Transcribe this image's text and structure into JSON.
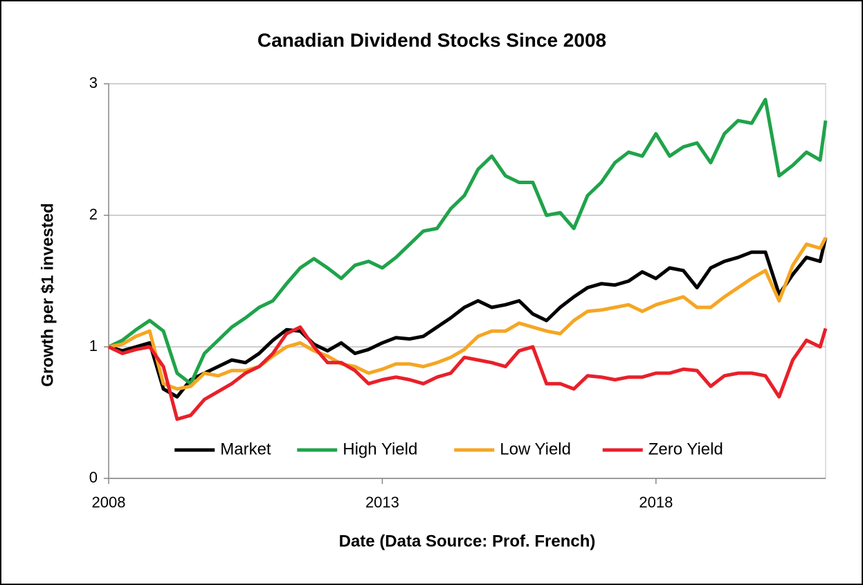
{
  "chart_data": {
    "type": "line",
    "title": "Canadian Dividend Stocks Since 2008",
    "xlabel": "Date (Data Source: Prof. French)",
    "ylabel": "Growth per $1 invested",
    "x": [
      2008,
      2008.25,
      2008.5,
      2008.75,
      2009,
      2009.25,
      2009.5,
      2009.75,
      2010,
      2010.25,
      2010.5,
      2010.75,
      2011,
      2011.25,
      2011.5,
      2011.75,
      2012,
      2012.25,
      2012.5,
      2012.75,
      2013,
      2013.25,
      2013.5,
      2013.75,
      2014,
      2014.25,
      2014.5,
      2014.75,
      2015,
      2015.25,
      2015.5,
      2015.75,
      2016,
      2016.25,
      2016.5,
      2016.75,
      2017,
      2017.25,
      2017.5,
      2017.75,
      2018,
      2018.25,
      2018.5,
      2018.75,
      2019,
      2019.25,
      2019.5,
      2019.75,
      2020,
      2020.25,
      2020.5,
      2020.75,
      2021,
      2021.1
    ],
    "series": [
      {
        "name": "Market",
        "color": "#000000",
        "values": [
          1.0,
          0.97,
          1.0,
          1.03,
          0.68,
          0.62,
          0.75,
          0.8,
          0.85,
          0.9,
          0.88,
          0.95,
          1.05,
          1.13,
          1.12,
          1.02,
          0.97,
          1.03,
          0.95,
          0.98,
          1.03,
          1.07,
          1.06,
          1.08,
          1.15,
          1.22,
          1.3,
          1.35,
          1.3,
          1.32,
          1.35,
          1.25,
          1.2,
          1.3,
          1.38,
          1.45,
          1.48,
          1.47,
          1.5,
          1.57,
          1.52,
          1.6,
          1.58,
          1.45,
          1.6,
          1.65,
          1.68,
          1.72,
          1.72,
          1.4,
          1.55,
          1.68,
          1.65,
          1.83
        ]
      },
      {
        "name": "High Yield",
        "color": "#1fa34a",
        "values": [
          1.0,
          1.05,
          1.13,
          1.2,
          1.12,
          0.8,
          0.72,
          0.95,
          1.05,
          1.15,
          1.22,
          1.3,
          1.35,
          1.48,
          1.6,
          1.67,
          1.6,
          1.52,
          1.62,
          1.65,
          1.6,
          1.68,
          1.78,
          1.88,
          1.9,
          2.05,
          2.15,
          2.35,
          2.45,
          2.3,
          2.25,
          2.25,
          2.0,
          2.02,
          1.9,
          2.15,
          2.25,
          2.4,
          2.48,
          2.45,
          2.62,
          2.45,
          2.52,
          2.55,
          2.4,
          2.62,
          2.72,
          2.7,
          2.88,
          2.3,
          2.38,
          2.48,
          2.42,
          2.72
        ]
      },
      {
        "name": "Low Yield",
        "color": "#f5a623",
        "values": [
          1.0,
          1.02,
          1.08,
          1.12,
          0.72,
          0.68,
          0.7,
          0.8,
          0.78,
          0.82,
          0.82,
          0.85,
          0.93,
          1.0,
          1.03,
          0.97,
          0.93,
          0.87,
          0.85,
          0.8,
          0.83,
          0.87,
          0.87,
          0.85,
          0.88,
          0.92,
          0.98,
          1.08,
          1.12,
          1.12,
          1.18,
          1.15,
          1.12,
          1.1,
          1.2,
          1.27,
          1.28,
          1.3,
          1.32,
          1.27,
          1.32,
          1.35,
          1.38,
          1.3,
          1.3,
          1.38,
          1.45,
          1.52,
          1.58,
          1.35,
          1.62,
          1.78,
          1.75,
          1.83
        ]
      },
      {
        "name": "Zero Yield",
        "color": "#e8202a",
        "values": [
          1.0,
          0.95,
          0.98,
          1.0,
          0.85,
          0.45,
          0.48,
          0.6,
          0.66,
          0.72,
          0.8,
          0.85,
          0.95,
          1.1,
          1.15,
          1.0,
          0.88,
          0.88,
          0.82,
          0.72,
          0.75,
          0.77,
          0.75,
          0.72,
          0.77,
          0.8,
          0.92,
          0.9,
          0.88,
          0.85,
          0.97,
          1.0,
          0.72,
          0.72,
          0.68,
          0.78,
          0.77,
          0.75,
          0.77,
          0.77,
          0.8,
          0.8,
          0.83,
          0.82,
          0.7,
          0.78,
          0.8,
          0.8,
          0.78,
          0.62,
          0.9,
          1.05,
          1.0,
          1.14
        ]
      }
    ],
    "xlim": [
      2008,
      2021.1
    ],
    "xticks": [
      2008,
      2013,
      2018
    ],
    "ylim": [
      0,
      3
    ],
    "yticks": [
      0,
      1,
      2,
      3
    ],
    "grid": true,
    "legend": "lower center"
  }
}
